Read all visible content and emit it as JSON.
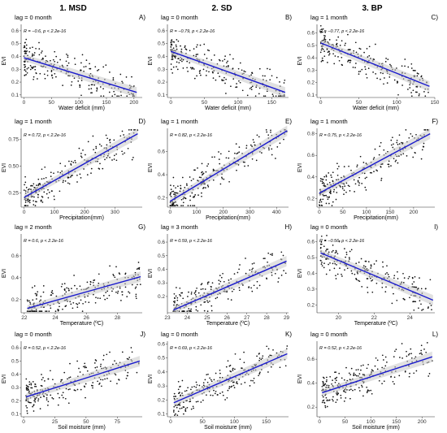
{
  "columns": [
    "1. MSD",
    "2. SD",
    "3. BP"
  ],
  "ylabel": "EVI",
  "chart_data": [
    {
      "type": "scatter",
      "panel": "A)",
      "lag": "lag = 0 month",
      "corr": "R = −0.6, p < 2.2e-16",
      "xlabel": "Water deficit (mm)",
      "xlim": [
        -5,
        215
      ],
      "ylim": [
        0.08,
        0.65
      ],
      "xticks": [
        0,
        50,
        100,
        150,
        200
      ],
      "yticks": [
        0.1,
        0.2,
        0.3,
        0.4,
        0.5,
        0.6
      ],
      "ytick_labels": [
        "0.1",
        "0.2",
        "0.3",
        "0.4",
        "0.5",
        "0.6"
      ],
      "fit": [
        [
          0,
          0.39
        ],
        [
          205,
          0.12
        ]
      ],
      "n": 230
    },
    {
      "type": "scatter",
      "panel": "B)",
      "lag": "lag = 0 month",
      "corr": "R = −0.79, p < 2.2e-16",
      "xlabel": "Water deficit (mm)",
      "xlim": [
        -5,
        175
      ],
      "ylim": [
        0.08,
        0.65
      ],
      "xticks": [
        0,
        50,
        100,
        150
      ],
      "yticks": [
        0.1,
        0.2,
        0.3,
        0.4,
        0.5,
        0.6
      ],
      "ytick_labels": [
        "0.1",
        "0.2",
        "0.3",
        "0.4",
        "0.5",
        "0.6"
      ],
      "fit": [
        [
          0,
          0.44
        ],
        [
          170,
          0.12
        ]
      ],
      "n": 230
    },
    {
      "type": "scatter",
      "panel": "C)",
      "lag": "lag = 1 month",
      "corr": "R = −0.77, p < 2.2e-16",
      "xlabel": "Water deficit (mm)",
      "xlim": [
        -5,
        150
      ],
      "ylim": [
        0.08,
        0.67
      ],
      "xticks": [
        0,
        50,
        100,
        150
      ],
      "yticks": [
        0.1,
        0.2,
        0.3,
        0.4,
        0.5,
        0.6
      ],
      "ytick_labels": [
        "0.1",
        "0.2",
        "0.3",
        "0.4",
        "0.5",
        "0.6"
      ],
      "fit": [
        [
          0,
          0.52
        ],
        [
          143,
          0.17
        ]
      ],
      "n": 230
    },
    {
      "type": "scatter",
      "panel": "D)",
      "lag": "lag = 1 month",
      "corr": "R = 0.72, p < 2.2e-16",
      "xlabel": "Precipitation(mm)",
      "xlim": [
        -10,
        390
      ],
      "ylim": [
        0.12,
        0.85
      ],
      "xticks": [
        0,
        100,
        200,
        300
      ],
      "yticks": [
        0.25,
        0.5,
        0.75
      ],
      "ytick_labels": [
        "0.25",
        "0.50",
        "0.75"
      ],
      "fit": [
        [
          0,
          0.21
        ],
        [
          375,
          0.8
        ]
      ],
      "n": 230
    },
    {
      "type": "scatter",
      "panel": "E)",
      "lag": "lag = 1 month",
      "corr": "R = 0.82, p < 2.2e-16",
      "xlabel": "Precipitation(mm)",
      "xlim": [
        -10,
        445
      ],
      "ylim": [
        0.12,
        0.8
      ],
      "xticks": [
        0,
        100,
        200,
        300,
        400
      ],
      "yticks": [
        0.2,
        0.4,
        0.6
      ],
      "ytick_labels": [
        "0.2",
        "0.4",
        "0.6"
      ],
      "fit": [
        [
          0,
          0.17
        ],
        [
          440,
          0.78
        ]
      ],
      "n": 230
    },
    {
      "type": "scatter",
      "panel": "F)",
      "lag": "lag = 1 month",
      "corr": "R = 0.75, p < 2.2e-16",
      "xlabel": "Precipitation(mm)",
      "xlim": [
        -5,
        245
      ],
      "ylim": [
        0.12,
        0.85
      ],
      "xticks": [
        0,
        50,
        100,
        150,
        200
      ],
      "yticks": [
        0.2,
        0.4,
        0.6,
        0.8
      ],
      "ytick_labels": [
        "0.2",
        "0.4",
        "0.6",
        "0.8"
      ],
      "fit": [
        [
          0,
          0.25
        ],
        [
          235,
          0.8
        ]
      ],
      "n": 230
    },
    {
      "type": "scatter",
      "panel": "G)",
      "lag": "lag = 2 month",
      "corr": "R = 0.6, p < 2.2e-16",
      "xlabel": "Temperature (ºC)",
      "xlim": [
        21.8,
        29.6
      ],
      "ylim": [
        0.08,
        0.8
      ],
      "xticks": [
        22,
        24,
        26,
        28
      ],
      "yticks": [
        0.2,
        0.4,
        0.6
      ],
      "ytick_labels": [
        "0.2",
        "0.4",
        "0.6"
      ],
      "fit": [
        [
          22.2,
          0.12
        ],
        [
          29.5,
          0.41
        ]
      ],
      "n": 230
    },
    {
      "type": "scatter",
      "panel": "H)",
      "lag": "lag = 3 month",
      "corr": "R = 0.59, p < 2.2e-16",
      "xlabel": "Temperature (ºC)",
      "xlim": [
        23,
        29.1
      ],
      "ylim": [
        0.08,
        0.66
      ],
      "xticks": [
        23,
        24,
        25,
        26,
        27,
        28,
        29
      ],
      "yticks": [
        0.2,
        0.3,
        0.4,
        0.5,
        0.6
      ],
      "ytick_labels": [
        "0.2",
        "0.3",
        "0.4",
        "0.5",
        "0.6"
      ],
      "fit": [
        [
          23.3,
          0.1
        ],
        [
          29,
          0.46
        ]
      ],
      "n": 230
    },
    {
      "type": "scatter",
      "panel": "I)",
      "lag": "lag = 0 month",
      "corr": "R = −0.56, p < 2.2e-16",
      "xlabel": "Temperature (ºC)",
      "xlim": [
        18.8,
        25.4
      ],
      "ylim": [
        0.15,
        0.65
      ],
      "xticks": [
        20,
        22,
        24
      ],
      "yticks": [
        0.2,
        0.3,
        0.4,
        0.5,
        0.6
      ],
      "ytick_labels": [
        "0.2",
        "0.3",
        "0.4",
        "0.5",
        "0.6"
      ],
      "fit": [
        [
          19,
          0.53
        ],
        [
          25.3,
          0.23
        ]
      ],
      "n": 230
    },
    {
      "type": "scatter",
      "panel": "J)",
      "lag": "lag = 0 month",
      "corr": "R = 0.52, p < 2.2e-16",
      "xlabel": "Soil moisture (mm)",
      "xlim": [
        -2,
        95
      ],
      "ylim": [
        0.08,
        0.65
      ],
      "xticks": [
        0,
        25,
        50,
        75
      ],
      "yticks": [
        0.1,
        0.2,
        0.3,
        0.4,
        0.5,
        0.6
      ],
      "ytick_labels": [
        "0.1",
        "0.2",
        "0.3",
        "0.4",
        "0.5",
        "0.6"
      ],
      "fit": [
        [
          2,
          0.23
        ],
        [
          93,
          0.5
        ]
      ],
      "n": 230
    },
    {
      "type": "scatter",
      "panel": "K)",
      "lag": "lag = 0 month",
      "corr": "R = 0.69, p < 2.2e-16",
      "xlabel": "Soil moisture (mm)",
      "xlim": [
        -5,
        185
      ],
      "ylim": [
        0.08,
        0.62
      ],
      "xticks": [
        0,
        50,
        100,
        150
      ],
      "yticks": [
        0.1,
        0.2,
        0.3,
        0.4,
        0.5,
        0.6
      ],
      "ytick_labels": [
        "0.1",
        "0.2",
        "0.3",
        "0.4",
        "0.5",
        "0.6"
      ],
      "fit": [
        [
          5,
          0.18
        ],
        [
          183,
          0.53
        ]
      ],
      "n": 230
    },
    {
      "type": "scatter",
      "panel": "L)",
      "lag": "lag = 0 month",
      "corr": "R = 0.52, p < 2.2e-16",
      "xlabel": "Soil moisture (mm)",
      "xlim": [
        -5,
        225
      ],
      "ylim": [
        0.12,
        0.75
      ],
      "xticks": [
        0,
        50,
        100,
        150,
        200
      ],
      "yticks": [
        0.2,
        0.4,
        0.6
      ],
      "ytick_labels": [
        "0.2",
        "0.4",
        "0.6"
      ],
      "fit": [
        [
          5,
          0.32
        ],
        [
          220,
          0.62
        ]
      ],
      "n": 230
    }
  ]
}
